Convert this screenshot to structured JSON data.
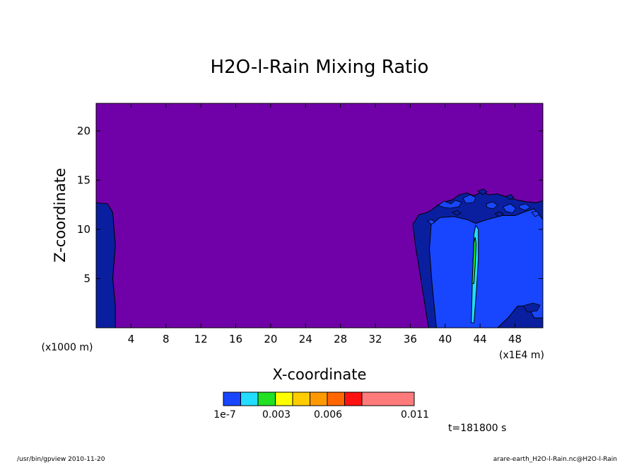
{
  "chart_data": {
    "type": "heatmap",
    "title": "H2O-l-Rain Mixing Ratio",
    "xlabel": "X-coordinate",
    "ylabel": "Z-coordinate",
    "x_unit": "(x1E4 m)",
    "y_unit": "(x1000 m)",
    "xlim": [
      0,
      51.2
    ],
    "ylim": [
      0,
      22.8
    ],
    "x_ticks": [
      {
        "value": 4,
        "label": "4"
      },
      {
        "value": 8,
        "label": "8"
      },
      {
        "value": 12,
        "label": "12"
      },
      {
        "value": 16,
        "label": "16"
      },
      {
        "value": 20,
        "label": "20"
      },
      {
        "value": 24,
        "label": "24"
      },
      {
        "value": 28,
        "label": "28"
      },
      {
        "value": 32,
        "label": "32"
      },
      {
        "value": 36,
        "label": "36"
      },
      {
        "value": 40,
        "label": "40"
      },
      {
        "value": 44,
        "label": "44"
      },
      {
        "value": 48,
        "label": "48"
      }
    ],
    "y_ticks": [
      {
        "value": 5,
        "label": "5"
      },
      {
        "value": 10,
        "label": "10"
      },
      {
        "value": 15,
        "label": "15"
      },
      {
        "value": 20,
        "label": "20"
      }
    ],
    "background_color": "#7000a8",
    "regions": [
      {
        "level": "lowest",
        "color": "#0a1fa0",
        "points": [
          [
            0,
            0
          ],
          [
            0,
            12.7
          ],
          [
            1.3,
            12.6
          ],
          [
            1.9,
            11.7
          ],
          [
            2.2,
            8.4
          ],
          [
            1.9,
            5.0
          ],
          [
            2.2,
            2.2
          ],
          [
            2.2,
            0
          ]
        ]
      },
      {
        "level": "lowest",
        "color": "#0a1fa0",
        "points": [
          [
            38.1,
            0
          ],
          [
            37.3,
            4.5
          ],
          [
            36.6,
            8.3
          ],
          [
            36.3,
            10.5
          ],
          [
            37.0,
            11.5
          ],
          [
            37.9,
            11.7
          ],
          [
            38.5,
            12.0
          ],
          [
            39.2,
            12.5
          ],
          [
            40.0,
            12.8
          ],
          [
            40.8,
            13.0
          ],
          [
            41.6,
            13.5
          ],
          [
            42.5,
            13.7
          ],
          [
            43.3,
            13.4
          ],
          [
            44.2,
            13.8
          ],
          [
            45.0,
            13.5
          ],
          [
            46.0,
            13.6
          ],
          [
            47.0,
            13.3
          ],
          [
            48.2,
            13.0
          ],
          [
            49.3,
            12.8
          ],
          [
            50.4,
            12.7
          ],
          [
            51.2,
            12.9
          ],
          [
            51.2,
            0
          ]
        ]
      },
      {
        "level": "1e-7",
        "color": "#1846ff",
        "points": [
          [
            39.0,
            0
          ],
          [
            38.5,
            4.5
          ],
          [
            38.2,
            8.0
          ],
          [
            38.4,
            10.5
          ],
          [
            39.4,
            11.2
          ],
          [
            41.0,
            11.3
          ],
          [
            42.5,
            11.0
          ],
          [
            43.5,
            10.6
          ],
          [
            44.8,
            11.0
          ],
          [
            46.5,
            11.4
          ],
          [
            48.0,
            11.4
          ],
          [
            49.2,
            11.8
          ],
          [
            50.2,
            12.1
          ],
          [
            51.2,
            11.0
          ],
          [
            51.2,
            1.0
          ],
          [
            50.2,
            1.0
          ],
          [
            49.5,
            2.2
          ],
          [
            48.3,
            2.2
          ],
          [
            47.2,
            1.0
          ],
          [
            46.0,
            0
          ]
        ]
      },
      {
        "level": "0.0015",
        "color": "#22ddff",
        "points": [
          [
            43.0,
            0.5
          ],
          [
            43.1,
            4.0
          ],
          [
            43.2,
            7.0
          ],
          [
            43.3,
            9.5
          ],
          [
            43.5,
            10.4
          ],
          [
            43.8,
            10.0
          ],
          [
            43.8,
            7.0
          ],
          [
            43.6,
            4.0
          ],
          [
            43.3,
            0.5
          ]
        ]
      },
      {
        "level": "0.003",
        "color": "#22e022",
        "points": [
          [
            43.1,
            4.5
          ],
          [
            43.2,
            6.8
          ],
          [
            43.3,
            8.7
          ],
          [
            43.45,
            9.2
          ],
          [
            43.55,
            8.5
          ],
          [
            43.45,
            6.5
          ],
          [
            43.3,
            4.5
          ]
        ]
      }
    ],
    "colorbar": {
      "colors": [
        "#1846ff",
        "#22ddff",
        "#22e022",
        "#ffff00",
        "#ffcc00",
        "#ff9900",
        "#ff6600",
        "#ff1111",
        "#ff7b7b"
      ],
      "labels": [
        {
          "text": "1e-7",
          "value": 1e-07
        },
        {
          "text": "0.003",
          "value": 0.003
        },
        {
          "text": "0.006",
          "value": 0.006
        },
        {
          "text": "0.011",
          "value": 0.011
        }
      ]
    }
  },
  "time_label": "t=181800 s",
  "footer_left": "/usr/bin/gpview  2010-11-20",
  "footer_right": "arare-earth_H2O-l-Rain.nc@H2O-l-Rain"
}
